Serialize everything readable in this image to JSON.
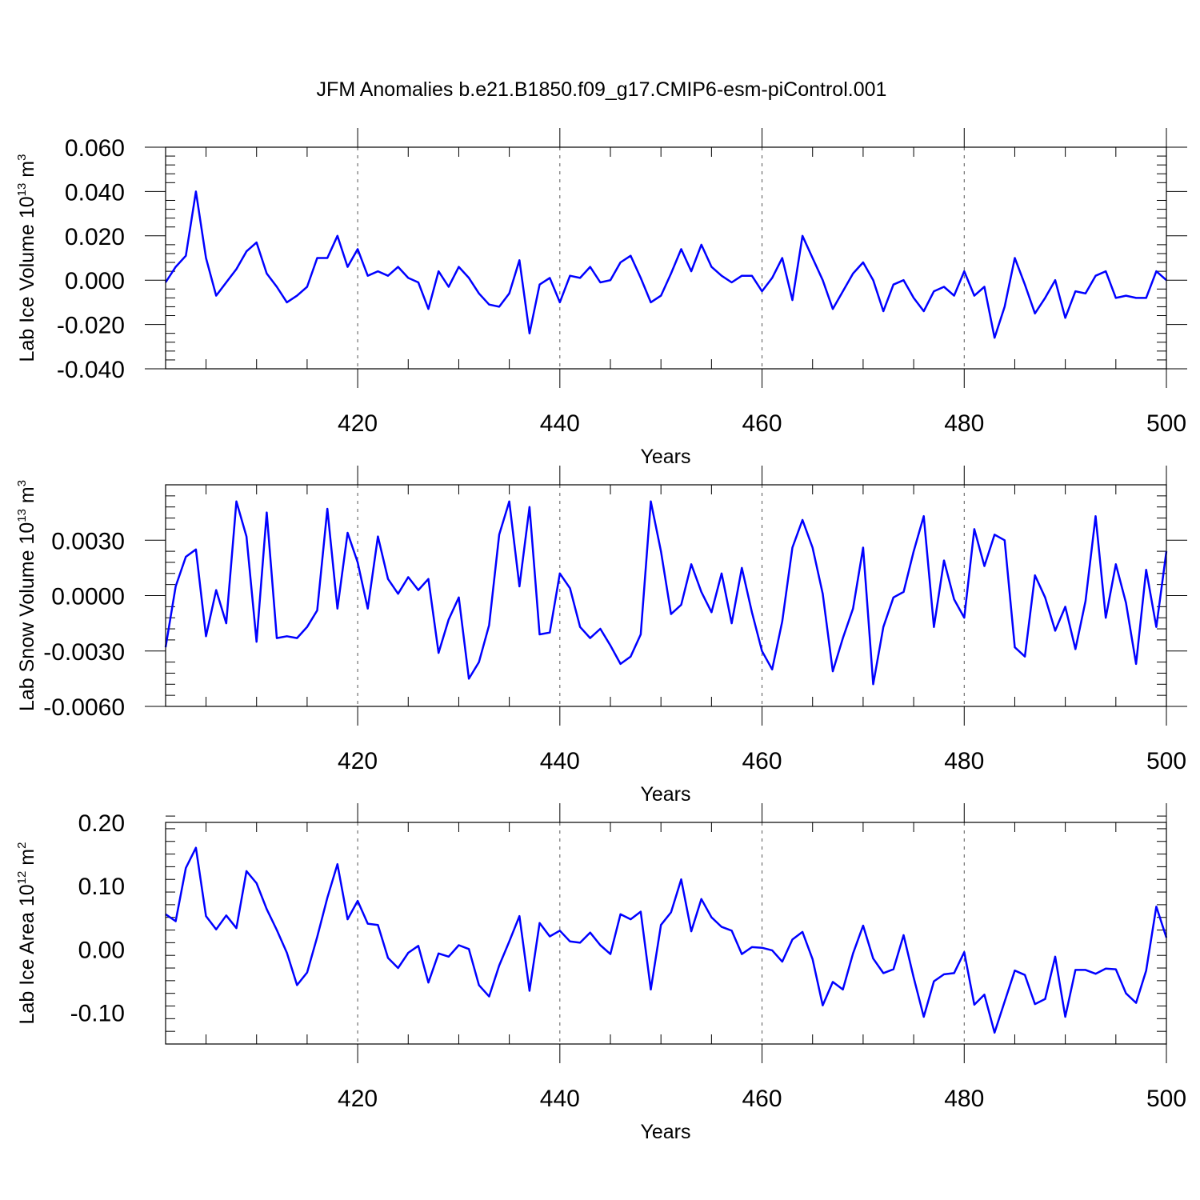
{
  "figure": {
    "title": "JFM Anomalies b.e21.B1850.f09_g17.CMIP6-esm-piControl.001"
  },
  "chart_data": [
    {
      "type": "line",
      "title": "",
      "xlabel": "Years",
      "ylabel": {
        "main": "Lab Ice Volume 10",
        "exp": "13",
        "unit": " m",
        "unit_exp": "3"
      },
      "xlim": [
        401,
        500
      ],
      "ylim": [
        -0.04,
        0.06
      ],
      "xticks": [
        420,
        440,
        460,
        480,
        500
      ],
      "yticks": [
        -0.04,
        -0.02,
        0.0,
        0.02,
        0.04,
        0.06
      ],
      "ytick_labels": [
        "-0.040",
        "-0.020",
        "0.000",
        "0.020",
        "0.040",
        "0.060"
      ],
      "grid": "dashed vertical lines at major x ticks",
      "line_color": "#0000ff",
      "x": [
        401,
        402,
        403,
        404,
        405,
        406,
        407,
        408,
        409,
        410,
        411,
        412,
        413,
        414,
        415,
        416,
        417,
        418,
        419,
        420,
        421,
        422,
        423,
        424,
        425,
        426,
        427,
        428,
        429,
        430,
        431,
        432,
        433,
        434,
        435,
        436,
        437,
        438,
        439,
        440,
        441,
        442,
        443,
        444,
        445,
        446,
        447,
        448,
        449,
        450,
        451,
        452,
        453,
        454,
        455,
        456,
        457,
        458,
        459,
        460,
        461,
        462,
        463,
        464,
        465,
        466,
        467,
        468,
        469,
        470,
        471,
        472,
        473,
        474,
        475,
        476,
        477,
        478,
        479,
        480,
        481,
        482,
        483,
        484,
        485,
        486,
        487,
        488,
        489,
        490,
        491,
        492,
        493,
        494,
        495,
        496,
        497,
        498,
        499,
        500
      ],
      "values": [
        -0.001,
        0.006,
        0.011,
        0.04,
        0.01,
        -0.007,
        -0.001,
        0.005,
        0.013,
        0.017,
        0.003,
        -0.003,
        -0.01,
        -0.007,
        -0.003,
        0.01,
        0.01,
        0.02,
        0.006,
        0.014,
        0.002,
        0.004,
        0.002,
        0.006,
        0.001,
        -0.001,
        -0.013,
        0.004,
        -0.003,
        0.006,
        0.001,
        -0.006,
        -0.011,
        -0.012,
        -0.006,
        0.009,
        -0.024,
        -0.002,
        0.001,
        -0.01,
        0.002,
        0.001,
        0.006,
        -0.001,
        0.0,
        0.008,
        0.011,
        0.001,
        -0.01,
        -0.007,
        0.003,
        0.014,
        0.004,
        0.016,
        0.006,
        0.002,
        -0.001,
        0.002,
        0.002,
        -0.005,
        0.001,
        0.01,
        -0.009,
        0.02,
        0.01,
        0.0,
        -0.013,
        -0.005,
        0.003,
        0.008,
        0.0,
        -0.014,
        -0.002,
        0.0,
        -0.008,
        -0.014,
        -0.005,
        -0.003,
        -0.007,
        0.004,
        -0.007,
        -0.003,
        -0.026,
        -0.012,
        0.01,
        -0.002,
        -0.015,
        -0.008,
        0.0,
        -0.017,
        -0.005,
        -0.006,
        0.002,
        0.004,
        -0.008,
        -0.007,
        -0.008,
        -0.008,
        0.004,
        0.0
      ]
    },
    {
      "type": "line",
      "title": "",
      "xlabel": "Years",
      "ylabel": {
        "main": "Lab Snow Volume 10",
        "exp": "13",
        "unit": " m",
        "unit_exp": "3"
      },
      "xlim": [
        401,
        500
      ],
      "ylim": [
        -0.006,
        0.006
      ],
      "xticks": [
        420,
        440,
        460,
        480,
        500
      ],
      "yticks": [
        -0.006,
        -0.003,
        0.0,
        0.003
      ],
      "ytick_labels": [
        "-0.0060",
        "-0.0030",
        "0.0000",
        "0.0030"
      ],
      "grid": "dashed vertical lines at major x ticks",
      "line_color": "#0000ff",
      "x": [
        401,
        402,
        403,
        404,
        405,
        406,
        407,
        408,
        409,
        410,
        411,
        412,
        413,
        414,
        415,
        416,
        417,
        418,
        419,
        420,
        421,
        422,
        423,
        424,
        425,
        426,
        427,
        428,
        429,
        430,
        431,
        432,
        433,
        434,
        435,
        436,
        437,
        438,
        439,
        440,
        441,
        442,
        443,
        444,
        445,
        446,
        447,
        448,
        449,
        450,
        451,
        452,
        453,
        454,
        455,
        456,
        457,
        458,
        459,
        460,
        461,
        462,
        463,
        464,
        465,
        466,
        467,
        468,
        469,
        470,
        471,
        472,
        473,
        474,
        475,
        476,
        477,
        478,
        479,
        480,
        481,
        482,
        483,
        484,
        485,
        486,
        487,
        488,
        489,
        490,
        491,
        492,
        493,
        494,
        495,
        496,
        497,
        498,
        499,
        500
      ],
      "values": [
        -0.0028,
        0.0005,
        0.0021,
        0.0025,
        -0.0022,
        0.0003,
        -0.0015,
        0.0051,
        0.0032,
        -0.0025,
        0.0045,
        -0.0023,
        -0.0022,
        -0.0023,
        -0.0017,
        -0.0008,
        0.0047,
        -0.0007,
        0.0034,
        0.0018,
        -0.0007,
        0.0032,
        0.0009,
        0.0001,
        0.001,
        0.0003,
        0.0009,
        -0.0031,
        -0.0013,
        -0.0001,
        -0.0045,
        -0.0036,
        -0.0016,
        0.0033,
        0.0051,
        0.0005,
        0.0048,
        -0.0021,
        -0.002,
        0.0012,
        0.0004,
        -0.0017,
        -0.0023,
        -0.0018,
        -0.0027,
        -0.0037,
        -0.0033,
        -0.0021,
        0.0051,
        0.0024,
        -0.001,
        -0.0005,
        0.0017,
        0.0002,
        -0.0009,
        0.0012,
        -0.0015,
        0.0015,
        -0.0009,
        -0.003,
        -0.004,
        -0.0014,
        0.0026,
        0.0041,
        0.0026,
        0.0001,
        -0.0041,
        -0.0023,
        -0.0007,
        0.0026,
        -0.0048,
        -0.0017,
        -0.0001,
        0.0002,
        0.0024,
        0.0043,
        -0.0017,
        0.0019,
        -0.0002,
        -0.0012,
        0.0036,
        0.0016,
        0.0033,
        0.003,
        -0.0028,
        -0.0033,
        0.0011,
        -0.0001,
        -0.0019,
        -0.0006,
        -0.0029,
        -0.0003,
        0.0043,
        -0.0012,
        0.0017,
        -0.0004,
        -0.0037,
        0.0014,
        -0.0017,
        0.0024
      ]
    },
    {
      "type": "line",
      "title": "",
      "xlabel": "Years",
      "ylabel": {
        "main": "Lab Ice Area 10",
        "exp": "12",
        "unit": " m",
        "unit_exp": "2"
      },
      "xlim": [
        401,
        500
      ],
      "ylim": [
        -0.15,
        0.2
      ],
      "xticks": [
        420,
        440,
        460,
        480,
        500
      ],
      "yticks": [
        -0.1,
        0.0,
        0.1,
        0.2
      ],
      "ytick_labels": [
        "-0.10",
        "0.00",
        "0.10",
        "0.20"
      ],
      "grid": "dashed vertical lines at major x ticks",
      "line_color": "#0000ff",
      "x": [
        401,
        402,
        403,
        404,
        405,
        406,
        407,
        408,
        409,
        410,
        411,
        412,
        413,
        414,
        415,
        416,
        417,
        418,
        419,
        420,
        421,
        422,
        423,
        424,
        425,
        426,
        427,
        428,
        429,
        430,
        431,
        432,
        433,
        434,
        435,
        436,
        437,
        438,
        439,
        440,
        441,
        442,
        443,
        444,
        445,
        446,
        447,
        448,
        449,
        450,
        451,
        452,
        453,
        454,
        455,
        456,
        457,
        458,
        459,
        460,
        461,
        462,
        463,
        464,
        465,
        466,
        467,
        468,
        469,
        470,
        471,
        472,
        473,
        474,
        475,
        476,
        477,
        478,
        479,
        480,
        481,
        482,
        483,
        484,
        485,
        486,
        487,
        488,
        489,
        490,
        491,
        492,
        493,
        494,
        495,
        496,
        497,
        498,
        499,
        500
      ],
      "values": [
        0.055,
        0.044,
        0.128,
        0.16,
        0.052,
        0.031,
        0.053,
        0.033,
        0.123,
        0.104,
        0.063,
        0.03,
        -0.006,
        -0.057,
        -0.037,
        0.019,
        0.081,
        0.134,
        0.047,
        0.076,
        0.04,
        0.038,
        -0.014,
        -0.03,
        -0.006,
        0.005,
        -0.053,
        -0.007,
        -0.012,
        0.006,
        0.0,
        -0.057,
        -0.075,
        -0.026,
        0.012,
        0.052,
        -0.066,
        0.041,
        0.02,
        0.029,
        0.012,
        0.01,
        0.026,
        0.006,
        -0.008,
        0.055,
        0.047,
        0.059,
        -0.064,
        0.038,
        0.058,
        0.11,
        0.028,
        0.079,
        0.05,
        0.035,
        0.029,
        -0.008,
        0.003,
        0.002,
        -0.002,
        -0.02,
        0.015,
        0.027,
        -0.016,
        -0.089,
        -0.052,
        -0.064,
        -0.007,
        0.037,
        -0.015,
        -0.038,
        -0.032,
        0.022,
        -0.045,
        -0.107,
        -0.051,
        -0.04,
        -0.038,
        -0.005,
        -0.088,
        -0.072,
        -0.132,
        -0.083,
        -0.034,
        -0.041,
        -0.087,
        -0.079,
        -0.012,
        -0.107,
        -0.033,
        -0.033,
        -0.039,
        -0.031,
        -0.032,
        -0.07,
        -0.085,
        -0.034,
        0.067,
        0.018
      ]
    }
  ]
}
